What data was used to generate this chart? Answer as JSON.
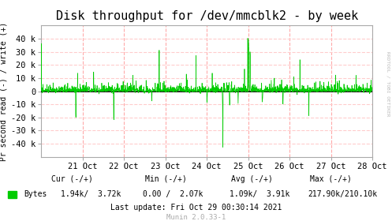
{
  "title": "Disk throughput for /dev/mmcblk2 - by week",
  "ylabel": "Pr second read (-) / write (+)",
  "background_color": "#FFFFFF",
  "plot_bg_color": "#FFFFFF",
  "grid_color": "#FFCCCC",
  "line_color": "#00CC00",
  "zero_line_color": "#000000",
  "border_color": "#AAAAAA",
  "ylim": [
    -50000,
    50000
  ],
  "yticks": [
    -40000,
    -30000,
    -20000,
    -10000,
    0,
    10000,
    20000,
    30000,
    40000
  ],
  "ytick_labels": [
    "-40 k",
    "-30 k",
    "-20 k",
    "-10 k",
    "0",
    "10 k",
    "20 k",
    "30 k",
    "40 k"
  ],
  "xtick_positions": [
    1,
    2,
    3,
    4,
    5,
    6,
    7,
    8
  ],
  "xtick_labels": [
    "21 Oct",
    "22 Oct",
    "23 Oct",
    "24 Oct",
    "25 Oct",
    "26 Oct",
    "27 Oct",
    "28 Oct"
  ],
  "footer_munin": "Munin 2.0.33-1",
  "rrdtool_text": "RRDTOOL / TOBI OETIKER",
  "legend_color": "#00CC00",
  "vline_color": "#FFAAAA",
  "title_fontsize": 11,
  "axis_fontsize": 7.5,
  "footer_fontsize": 7
}
